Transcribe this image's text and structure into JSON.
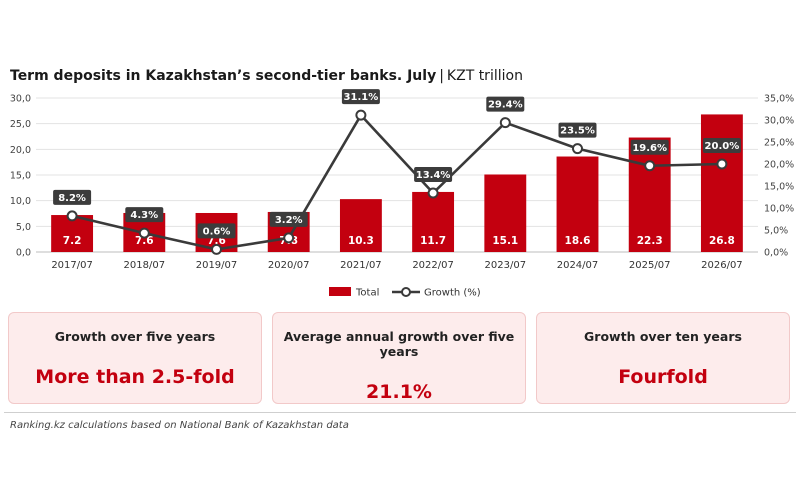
{
  "title": {
    "main": "Term deposits in Kazakhstan’s second-tier banks. July",
    "separator": "|",
    "unit": "KZT trillion"
  },
  "chart_data": {
    "type": "bar+line",
    "categories": [
      "2017/07",
      "2018/07",
      "2019/07",
      "2020/07",
      "2021/07",
      "2022/07",
      "2023/07",
      "2024/07",
      "2025/07",
      "2026/07"
    ],
    "series": [
      {
        "name": "Total",
        "type": "bar",
        "axis": "left",
        "color": "#c3000f",
        "values": [
          7.2,
          7.6,
          7.6,
          7.8,
          10.3,
          11.7,
          15.1,
          18.6,
          22.3,
          26.8
        ],
        "labels": [
          "7.2",
          "7.6",
          "7.6",
          "7.8",
          "10.3",
          "11.7",
          "15.1",
          "18.6",
          "22.3",
          "26.8"
        ]
      },
      {
        "name": "Growth (%)",
        "type": "line",
        "axis": "right",
        "color": "#3a3a3a",
        "values": [
          8.2,
          4.3,
          0.6,
          3.2,
          31.1,
          13.4,
          29.4,
          23.5,
          19.6,
          20.0
        ],
        "labels": [
          "8.2%",
          "4.3%",
          "0.6%",
          "3.2%",
          "31.1%",
          "13.4%",
          "29.4%",
          "23.5%",
          "19.6%",
          "20.0%"
        ]
      }
    ],
    "y_left": {
      "min": 0,
      "max": 30,
      "ticks": [
        "0,0",
        "5,0",
        "10,0",
        "15,0",
        "20,0",
        "25,0",
        "30,0"
      ]
    },
    "y_right": {
      "min": 0,
      "max": 35,
      "ticks": [
        "0,0%",
        "5,0%",
        "10,0%",
        "15,0%",
        "20,0%",
        "25,0%",
        "30,0%",
        "35,0%"
      ]
    },
    "grid": true,
    "legend_position": "bottom"
  },
  "summary": [
    {
      "label": "Growth over five years",
      "value": "More than 2.5-fold"
    },
    {
      "label": "Average annual growth over five years",
      "value": "21.1%"
    },
    {
      "label": "Growth over ten years",
      "value": "Fourfold"
    }
  ],
  "source": "Ranking.kz calculations based on National Bank of Kazakhstan data"
}
